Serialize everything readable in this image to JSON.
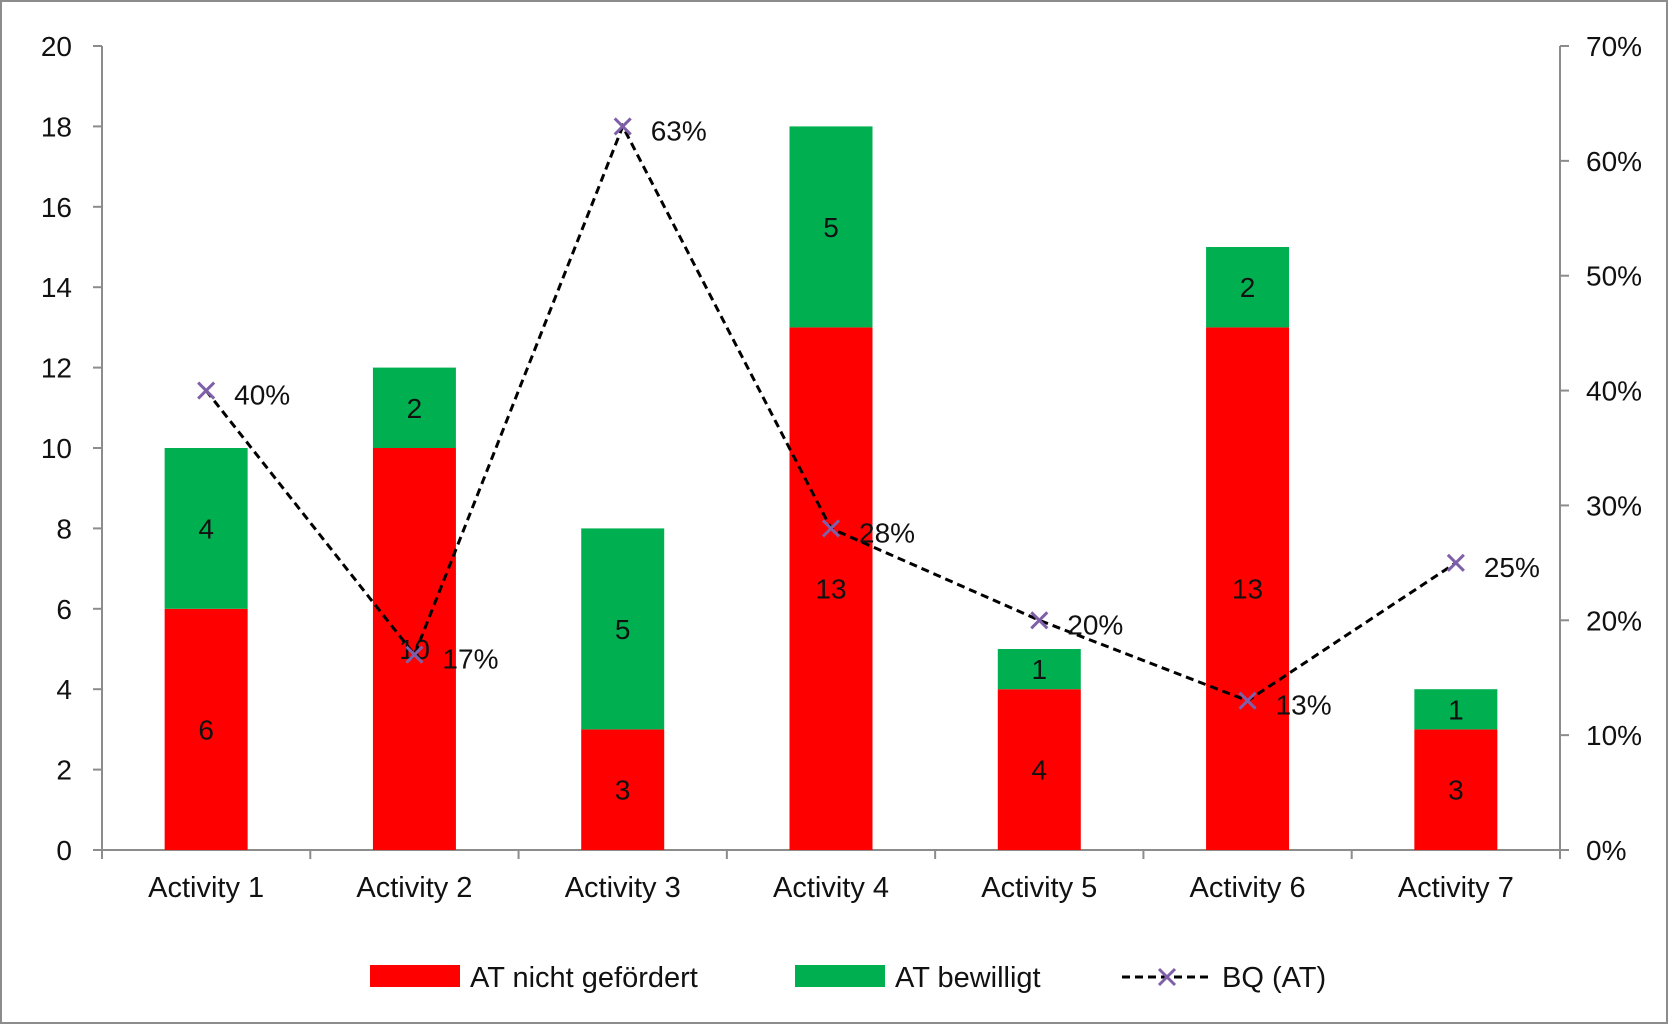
{
  "chart_data": {
    "type": "bar",
    "stacked": true,
    "categories": [
      "Activity 1",
      "Activity 2",
      "Activity 3",
      "Activity 4",
      "Activity 5",
      "Activity 6",
      "Activity 7"
    ],
    "series": [
      {
        "name": "AT nicht gefördert",
        "kind": "bar",
        "color": "#ff0000",
        "values": [
          6,
          10,
          3,
          13,
          4,
          13,
          3
        ],
        "labels": [
          "6",
          "10",
          "3",
          "13",
          "4",
          "13",
          "3"
        ]
      },
      {
        "name": "AT bewilligt",
        "kind": "bar",
        "color": "#00b050",
        "values": [
          4,
          2,
          5,
          5,
          1,
          2,
          1
        ],
        "labels": [
          "4",
          "2",
          "5",
          "5",
          "1",
          "2",
          "1"
        ]
      },
      {
        "name": "BQ (AT)",
        "kind": "line",
        "axis": "secondary",
        "line_style": "dashed",
        "marker": "x",
        "color": "#000000",
        "marker_color": "#7f60a8",
        "values": [
          0.4,
          0.17,
          0.63,
          0.28,
          0.2,
          0.13,
          0.25
        ],
        "labels": [
          "40%",
          "17%",
          "63%",
          "28%",
          "20%",
          "13%",
          "25%"
        ]
      }
    ],
    "ylim": [
      0,
      20
    ],
    "y_ticks": [
      "0",
      "2",
      "4",
      "6",
      "8",
      "10",
      "12",
      "14",
      "16",
      "18",
      "20"
    ],
    "y2lim": [
      0,
      0.7
    ],
    "y2_ticks": [
      "0%",
      "10%",
      "20%",
      "30%",
      "40%",
      "50%",
      "60%",
      "70%"
    ],
    "grid": false,
    "legend_position": "bottom"
  }
}
